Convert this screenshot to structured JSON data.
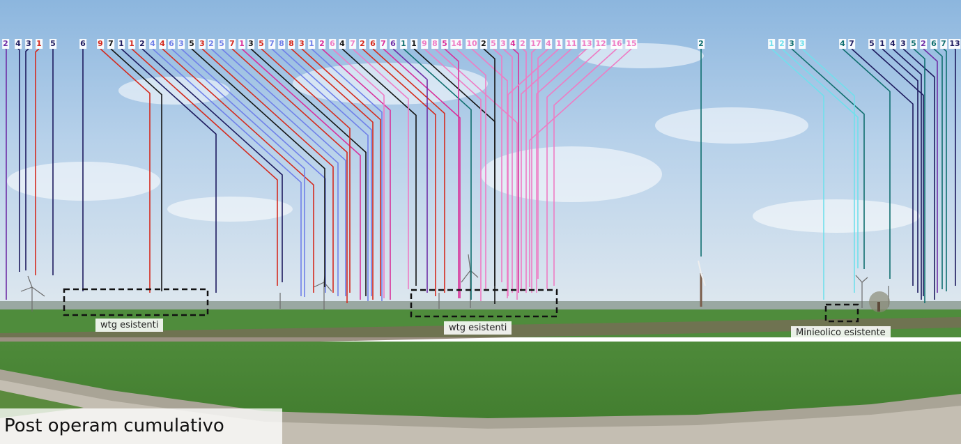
{
  "caption": "Post operam cumulativo",
  "labels": {
    "wtg_left": "wtg esistenti",
    "wtg_center": "wtg esistenti",
    "minieolico": "Minieolico esistente"
  },
  "colors": {
    "navy": "#1d1a5e",
    "red": "#d42a1e",
    "blue": "#7080e8",
    "magenta": "#d8309a",
    "pink": "#ee7cc4",
    "teal": "#0f6e6e",
    "cyan": "#70e0ec",
    "purple": "#6e2ea6",
    "black": "#141414"
  },
  "tags": [
    {
      "t": "2",
      "c": "purple"
    },
    {
      "t": "4",
      "c": "navy"
    },
    {
      "t": "3",
      "c": "navy"
    },
    {
      "t": "1",
      "c": "red"
    },
    {
      "t": "5",
      "c": "navy"
    },
    {
      "t": "6",
      "c": "navy"
    },
    {
      "t": "9",
      "c": "red"
    },
    {
      "t": "7",
      "c": "black"
    },
    {
      "t": "1",
      "c": "navy"
    },
    {
      "t": "1",
      "c": "red"
    },
    {
      "t": "2",
      "c": "navy"
    },
    {
      "t": "4",
      "c": "blue"
    },
    {
      "t": "4",
      "c": "red"
    },
    {
      "t": "6",
      "c": "blue"
    },
    {
      "t": "3",
      "c": "blue"
    },
    {
      "t": "5",
      "c": "black"
    },
    {
      "t": "3",
      "c": "red"
    },
    {
      "t": "2",
      "c": "blue"
    },
    {
      "t": "5",
      "c": "blue"
    },
    {
      "t": "7",
      "c": "red"
    },
    {
      "t": "1",
      "c": "magenta"
    },
    {
      "t": "3",
      "c": "black"
    },
    {
      "t": "5",
      "c": "red"
    },
    {
      "t": "7",
      "c": "blue"
    },
    {
      "t": "8",
      "c": "blue"
    },
    {
      "t": "8",
      "c": "red"
    },
    {
      "t": "3",
      "c": "red"
    },
    {
      "t": "1",
      "c": "blue"
    },
    {
      "t": "2",
      "c": "magenta"
    },
    {
      "t": "6",
      "c": "pink"
    },
    {
      "t": "4",
      "c": "black"
    },
    {
      "t": "7",
      "c": "pink"
    },
    {
      "t": "2",
      "c": "red"
    },
    {
      "t": "6",
      "c": "red"
    },
    {
      "t": "7",
      "c": "magenta"
    },
    {
      "t": "6",
      "c": "purple"
    },
    {
      "t": "1",
      "c": "teal"
    },
    {
      "t": "1",
      "c": "black"
    },
    {
      "t": "9",
      "c": "pink"
    },
    {
      "t": "8",
      "c": "pink"
    },
    {
      "t": "5",
      "c": "magenta"
    },
    {
      "t": "14",
      "c": "pink"
    },
    {
      "t": "10",
      "c": "pink"
    },
    {
      "t": "2",
      "c": "black"
    },
    {
      "t": "5",
      "c": "pink"
    },
    {
      "t": "3",
      "c": "pink"
    },
    {
      "t": "4",
      "c": "magenta"
    },
    {
      "t": "2",
      "c": "pink"
    },
    {
      "t": "17",
      "c": "pink"
    },
    {
      "t": "4",
      "c": "pink"
    },
    {
      "t": "1",
      "c": "pink"
    },
    {
      "t": "11",
      "c": "pink"
    },
    {
      "t": "13",
      "c": "pink"
    },
    {
      "t": "12",
      "c": "pink"
    },
    {
      "t": "16",
      "c": "pink"
    },
    {
      "t": "15",
      "c": "pink"
    },
    {
      "t": "2",
      "c": "teal"
    },
    {
      "t": "1",
      "c": "cyan"
    },
    {
      "t": "2",
      "c": "cyan"
    },
    {
      "t": "3",
      "c": "teal"
    },
    {
      "t": "3",
      "c": "cyan"
    },
    {
      "t": "4",
      "c": "teal"
    },
    {
      "t": "7",
      "c": "navy"
    },
    {
      "t": "5",
      "c": "navy"
    },
    {
      "t": "1",
      "c": "navy"
    },
    {
      "t": "4",
      "c": "navy"
    },
    {
      "t": "3",
      "c": "navy"
    },
    {
      "t": "5",
      "c": "teal"
    },
    {
      "t": "2",
      "c": "purple"
    },
    {
      "t": "6",
      "c": "teal"
    },
    {
      "t": "7",
      "c": "teal"
    },
    {
      "t": "13",
      "c": "navy"
    }
  ]
}
